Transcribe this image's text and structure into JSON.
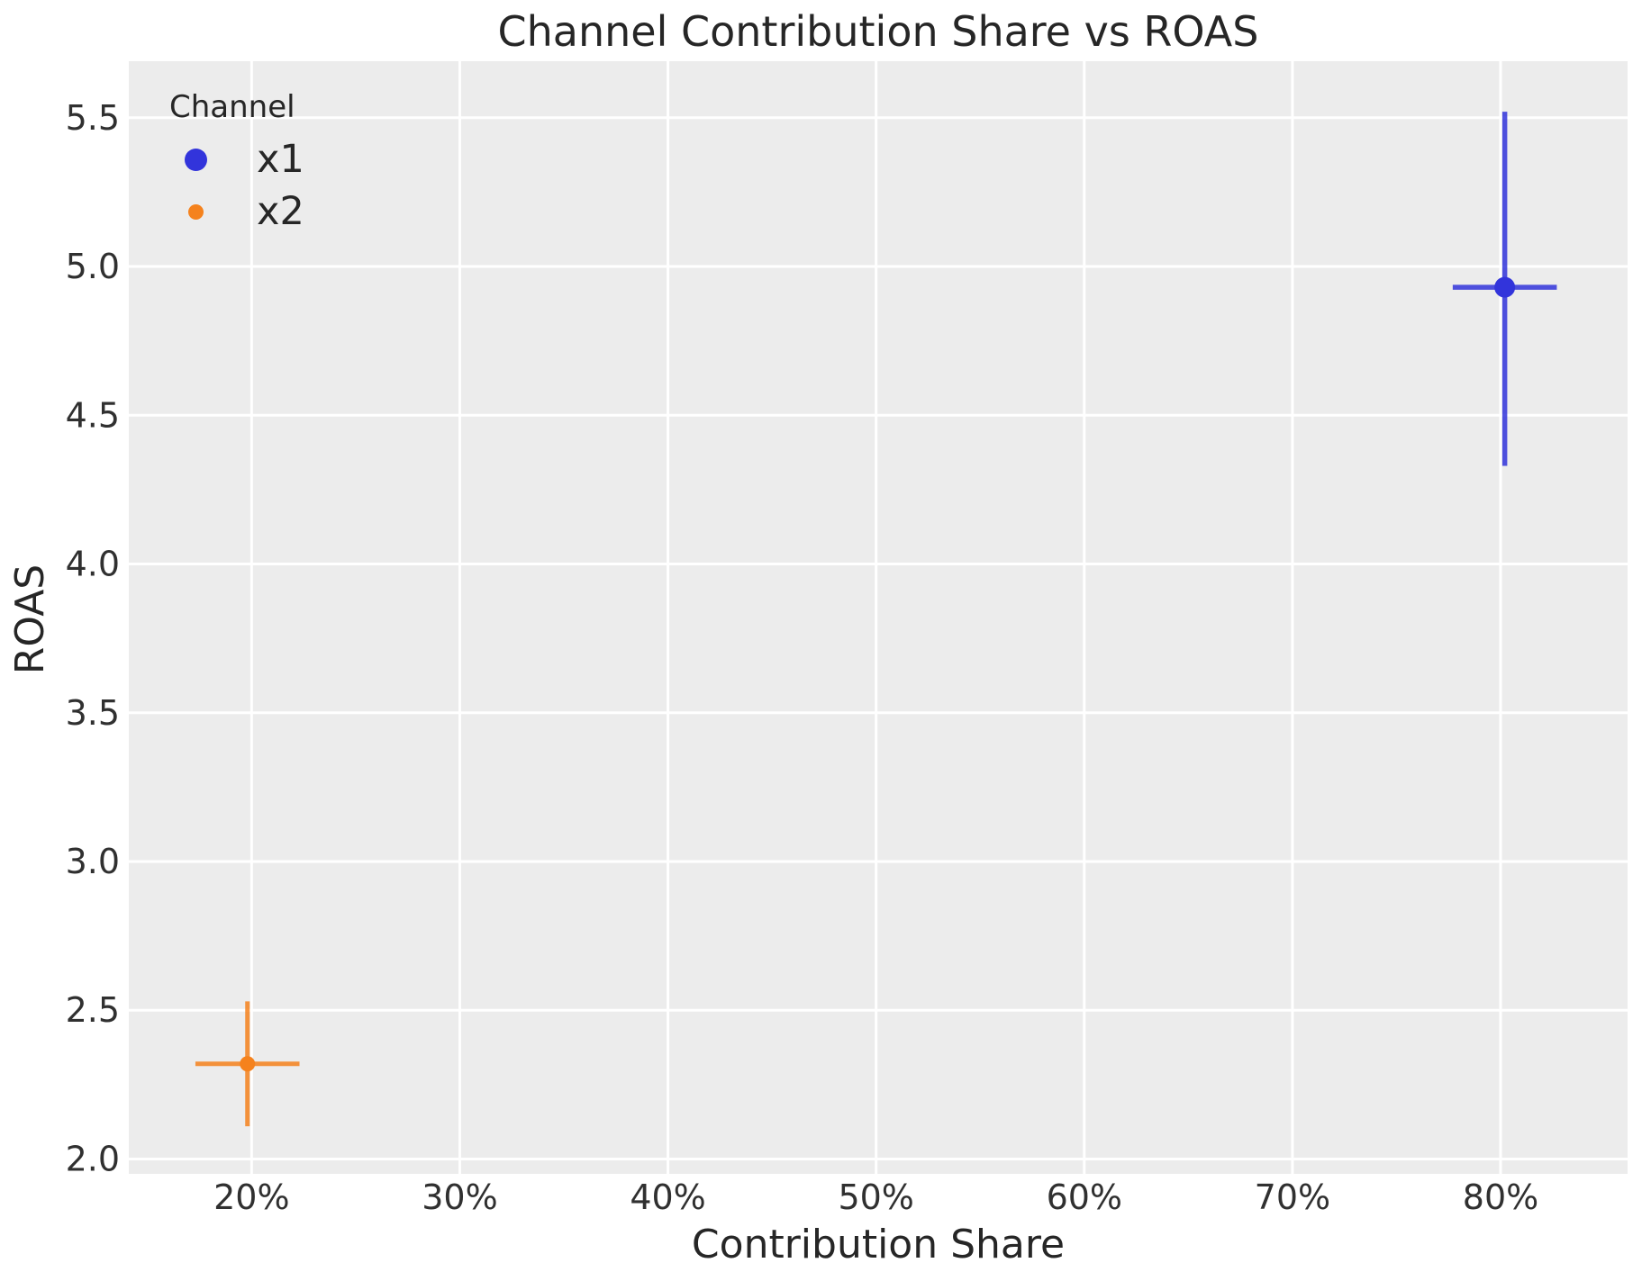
{
  "chart_data": {
    "type": "scatter",
    "title": "Channel Contribution Share vs ROAS",
    "xlabel": "Contribution Share",
    "ylabel": "ROAS",
    "xlim": [
      14.1,
      86.1
    ],
    "ylim": [
      1.95,
      5.69
    ],
    "grid": true,
    "x_ticks": [
      {
        "value": 20,
        "label": "20%"
      },
      {
        "value": 30,
        "label": "30%"
      },
      {
        "value": 40,
        "label": "40%"
      },
      {
        "value": 50,
        "label": "50%"
      },
      {
        "value": 60,
        "label": "60%"
      },
      {
        "value": 70,
        "label": "70%"
      },
      {
        "value": 80,
        "label": "80%"
      }
    ],
    "y_ticks": [
      {
        "value": 2.0,
        "label": "2.0"
      },
      {
        "value": 2.5,
        "label": "2.5"
      },
      {
        "value": 3.0,
        "label": "3.0"
      },
      {
        "value": 3.5,
        "label": "3.5"
      },
      {
        "value": 4.0,
        "label": "4.0"
      },
      {
        "value": 4.5,
        "label": "4.5"
      },
      {
        "value": 5.0,
        "label": "5.0"
      },
      {
        "value": 5.5,
        "label": "5.5"
      }
    ],
    "legend": {
      "title": "Channel",
      "position": "upper-left",
      "items": [
        {
          "label": "x1",
          "color": "#3234db",
          "marker_diameter": 25
        },
        {
          "label": "x2",
          "color": "#f5821d",
          "marker_diameter": 17
        }
      ]
    },
    "series": [
      {
        "name": "x1",
        "color": "#3234db",
        "marker_diameter": 23,
        "errorbar_width": 5.5,
        "points": [
          {
            "x": 80.2,
            "y": 4.93,
            "x_err_low": 77.7,
            "x_err_high": 82.7,
            "y_err_low": 4.33,
            "y_err_high": 5.52
          }
        ]
      },
      {
        "name": "x2",
        "color": "#f5821d",
        "marker_diameter": 17,
        "errorbar_width": 5,
        "points": [
          {
            "x": 19.8,
            "y": 2.32,
            "x_err_low": 17.3,
            "x_err_high": 22.3,
            "y_err_low": 2.11,
            "y_err_high": 2.53
          }
        ]
      }
    ],
    "colors": {
      "figure_bg": "#ffffff",
      "plot_bg": "#ececec",
      "gridline": "#ffffff",
      "tick_text": "#303030",
      "label_text": "#262626"
    }
  }
}
